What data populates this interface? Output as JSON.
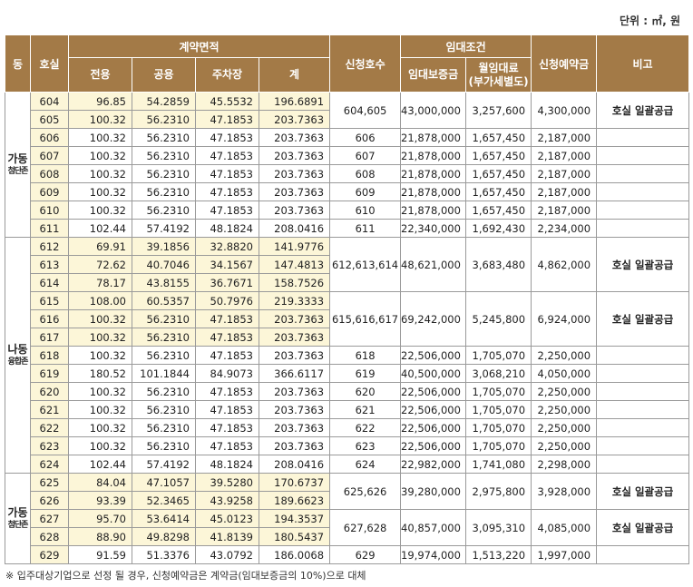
{
  "unit_label": "단위 : ㎡, 원",
  "headers": {
    "dong": "동",
    "room": "호실",
    "contract_area": "계약면적",
    "exclusive": "전용",
    "common": "공용",
    "parking": "주차장",
    "total": "계",
    "apply_rooms": "신청호수",
    "rent_terms": "임대조건",
    "deposit": "임대보증금",
    "monthly_rent": "월임대료",
    "monthly_rent_sub": "(부가세별도)",
    "reservation": "신청예약금",
    "remarks": "비고"
  },
  "groups": [
    {
      "dong": "가동",
      "sub": "첨단존",
      "rows": [
        {
          "room": "604",
          "exclusive": "96.85",
          "common": "54.2859",
          "parking": "45.5532",
          "total": "196.6891"
        },
        {
          "room": "605",
          "exclusive": "100.32",
          "common": "56.2310",
          "parking": "47.1853",
          "total": "203.7363"
        },
        {
          "room": "606",
          "exclusive": "100.32",
          "common": "56.2310",
          "parking": "47.1853",
          "total": "203.7363"
        },
        {
          "room": "607",
          "exclusive": "100.32",
          "common": "56.2310",
          "parking": "47.1853",
          "total": "203.7363"
        },
        {
          "room": "608",
          "exclusive": "100.32",
          "common": "56.2310",
          "parking": "47.1853",
          "total": "203.7363"
        },
        {
          "room": "609",
          "exclusive": "100.32",
          "common": "56.2310",
          "parking": "47.1853",
          "total": "203.7363"
        },
        {
          "room": "610",
          "exclusive": "100.32",
          "common": "56.2310",
          "parking": "47.1853",
          "total": "203.7363"
        },
        {
          "room": "611",
          "exclusive": "102.44",
          "common": "57.4192",
          "parking": "48.1824",
          "total": "208.0416"
        }
      ]
    },
    {
      "dong": "나동",
      "sub": "융합존",
      "rows": [
        {
          "room": "612",
          "exclusive": "69.91",
          "common": "39.1856",
          "parking": "32.8820",
          "total": "141.9776"
        },
        {
          "room": "613",
          "exclusive": "72.62",
          "common": "40.7046",
          "parking": "34.1567",
          "total": "147.4813"
        },
        {
          "room": "614",
          "exclusive": "78.17",
          "common": "43.8155",
          "parking": "36.7671",
          "total": "158.7526"
        },
        {
          "room": "615",
          "exclusive": "108.00",
          "common": "60.5357",
          "parking": "50.7976",
          "total": "219.3333"
        },
        {
          "room": "616",
          "exclusive": "100.32",
          "common": "56.2310",
          "parking": "47.1853",
          "total": "203.7363"
        },
        {
          "room": "617",
          "exclusive": "100.32",
          "common": "56.2310",
          "parking": "47.1853",
          "total": "203.7363"
        },
        {
          "room": "618",
          "exclusive": "100.32",
          "common": "56.2310",
          "parking": "47.1853",
          "total": "203.7363"
        },
        {
          "room": "619",
          "exclusive": "180.52",
          "common": "101.1844",
          "parking": "84.9073",
          "total": "366.6117"
        },
        {
          "room": "620",
          "exclusive": "100.32",
          "common": "56.2310",
          "parking": "47.1853",
          "total": "203.7363"
        },
        {
          "room": "621",
          "exclusive": "100.32",
          "common": "56.2310",
          "parking": "47.1853",
          "total": "203.7363"
        },
        {
          "room": "622",
          "exclusive": "100.32",
          "common": "56.2310",
          "parking": "47.1853",
          "total": "203.7363"
        },
        {
          "room": "623",
          "exclusive": "100.32",
          "common": "56.2310",
          "parking": "47.1853",
          "total": "203.7363"
        },
        {
          "room": "624",
          "exclusive": "102.44",
          "common": "57.4192",
          "parking": "48.1824",
          "total": "208.0416"
        }
      ]
    },
    {
      "dong": "가동",
      "sub": "첨단존",
      "rows": [
        {
          "room": "625",
          "exclusive": "84.04",
          "common": "47.1057",
          "parking": "39.5280",
          "total": "170.6737"
        },
        {
          "room": "626",
          "exclusive": "93.39",
          "common": "52.3465",
          "parking": "43.9258",
          "total": "189.6623"
        },
        {
          "room": "627",
          "exclusive": "95.70",
          "common": "53.6414",
          "parking": "45.0123",
          "total": "194.3537"
        },
        {
          "room": "628",
          "exclusive": "88.90",
          "common": "49.8298",
          "parking": "41.8139",
          "total": "180.5437"
        },
        {
          "room": "629",
          "exclusive": "91.59",
          "common": "51.3376",
          "parking": "43.0792",
          "total": "186.0068"
        }
      ]
    }
  ],
  "applications": [
    {
      "apply": "604,605",
      "deposit": "43,000,000",
      "rent": "3,257,600",
      "reservation": "4,300,000",
      "note": "호실 일괄공급"
    },
    {
      "apply": "606",
      "deposit": "21,878,000",
      "rent": "1,657,450",
      "reservation": "2,187,000",
      "note": ""
    },
    {
      "apply": "607",
      "deposit": "21,878,000",
      "rent": "1,657,450",
      "reservation": "2,187,000",
      "note": ""
    },
    {
      "apply": "608",
      "deposit": "21,878,000",
      "rent": "1,657,450",
      "reservation": "2,187,000",
      "note": ""
    },
    {
      "apply": "609",
      "deposit": "21,878,000",
      "rent": "1,657,450",
      "reservation": "2,187,000",
      "note": ""
    },
    {
      "apply": "610",
      "deposit": "21,878,000",
      "rent": "1,657,450",
      "reservation": "2,187,000",
      "note": ""
    },
    {
      "apply": "611",
      "deposit": "22,340,000",
      "rent": "1,692,430",
      "reservation": "2,234,000",
      "note": ""
    },
    {
      "apply": "612,613,614",
      "deposit": "48,621,000",
      "rent": "3,683,480",
      "reservation": "4,862,000",
      "note": "호실 일괄공급"
    },
    {
      "apply": "615,616,617",
      "deposit": "69,242,000",
      "rent": "5,245,800",
      "reservation": "6,924,000",
      "note": "호실 일괄공급"
    },
    {
      "apply": "618",
      "deposit": "22,506,000",
      "rent": "1,705,070",
      "reservation": "2,250,000",
      "note": ""
    },
    {
      "apply": "619",
      "deposit": "40,500,000",
      "rent": "3,068,210",
      "reservation": "4,050,000",
      "note": ""
    },
    {
      "apply": "620",
      "deposit": "22,506,000",
      "rent": "1,705,070",
      "reservation": "2,250,000",
      "note": ""
    },
    {
      "apply": "621",
      "deposit": "22,506,000",
      "rent": "1,705,070",
      "reservation": "2,250,000",
      "note": ""
    },
    {
      "apply": "622",
      "deposit": "22,506,000",
      "rent": "1,705,070",
      "reservation": "2,250,000",
      "note": ""
    },
    {
      "apply": "623",
      "deposit": "22,506,000",
      "rent": "1,705,070",
      "reservation": "2,250,000",
      "note": ""
    },
    {
      "apply": "624",
      "deposit": "22,982,000",
      "rent": "1,741,080",
      "reservation": "2,298,000",
      "note": ""
    },
    {
      "apply": "625,626",
      "deposit": "39,280,000",
      "rent": "2,975,800",
      "reservation": "3,928,000",
      "note": "호실 일괄공급"
    },
    {
      "apply": "627,628",
      "deposit": "40,857,000",
      "rent": "3,095,310",
      "reservation": "4,085,000",
      "note": "호실 일괄공급"
    },
    {
      "apply": "629",
      "deposit": "19,974,000",
      "rent": "1,513,220",
      "reservation": "1,997,000",
      "note": ""
    }
  ],
  "footnote": "※ 입주대상기업으로 선정 될 경우, 신청예약금은 계약금(임대보증금의 10%)으로 대체",
  "colors": {
    "header_bg": "#a37a47",
    "header_text": "#ffffff",
    "stripe": "#fcf6d8",
    "border": "#9a9a9a"
  }
}
